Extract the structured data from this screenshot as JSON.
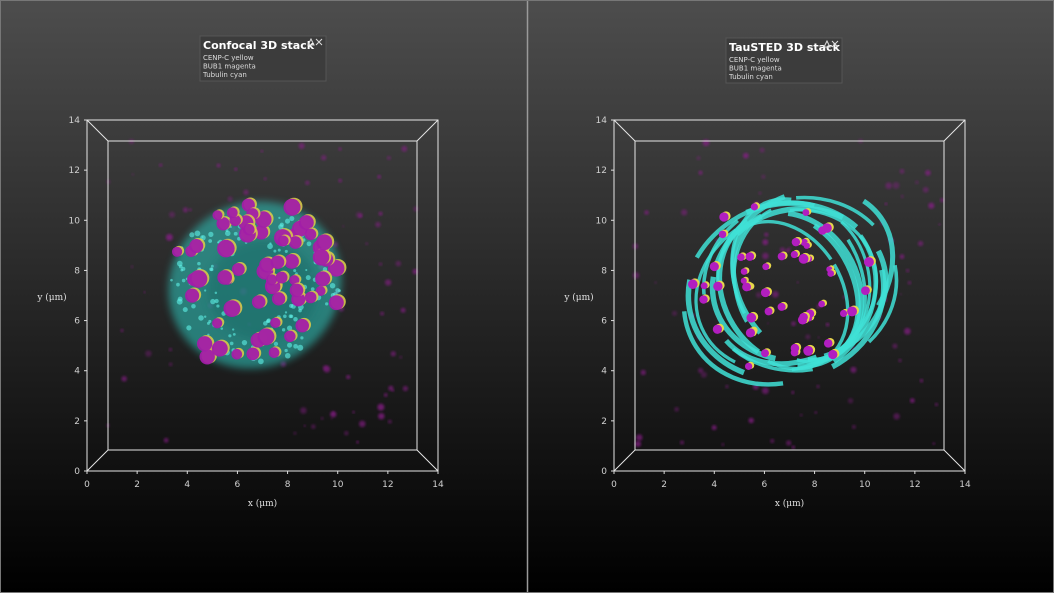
{
  "panels": [
    {
      "title": "Confocal 3D stack",
      "legend": [
        "CENP-C yellow",
        "BUB1 magenta",
        "Tubulin cyan"
      ],
      "x_label": "x (μm)",
      "y_label": "y (μm)",
      "x_ticks": [
        0,
        2,
        4,
        6,
        8,
        10,
        12,
        14
      ],
      "y_ticks": [
        0,
        2,
        4,
        6,
        8,
        10,
        12,
        14
      ]
    },
    {
      "title": "TauSTED 3D stack",
      "legend": [
        "CENP-C yellow",
        "BUB1 magenta",
        "Tubulin cyan"
      ],
      "x_label": "x (μm)",
      "y_label": "y (μm)",
      "x_ticks": [
        0,
        2,
        4,
        6,
        8,
        10,
        12,
        14
      ],
      "y_ticks": [
        0,
        2,
        4,
        6,
        8,
        10,
        12,
        14
      ]
    }
  ]
}
